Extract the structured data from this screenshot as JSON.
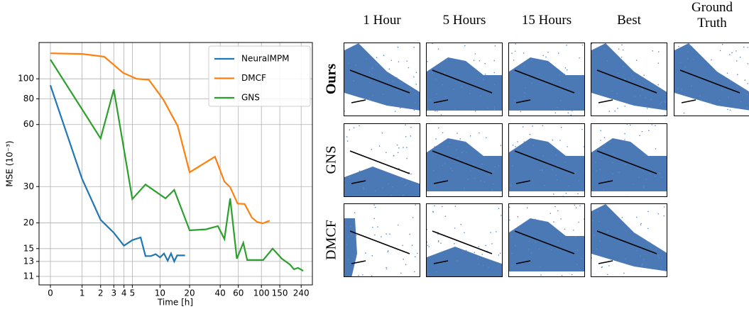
{
  "chart_data": {
    "type": "line",
    "xlabel": "Time [h]",
    "ylabel": "MSE (10⁻³)",
    "xscale": "log1p",
    "yscale": "log",
    "grid": true,
    "legend": "upper right",
    "xlim": [
      -0.22,
      307
    ],
    "ylim": [
      10,
      150
    ],
    "xticks": [
      0,
      1,
      2,
      3,
      4,
      5,
      10,
      20,
      40,
      60,
      100,
      150,
      240
    ],
    "yticks": [
      11,
      13,
      15,
      20,
      30,
      60,
      80,
      100
    ],
    "series": [
      {
        "name": "NeuralMPM",
        "color": "#1f77b4",
        "x": [
          0,
          1,
          2,
          3,
          4,
          5,
          6.2,
          7,
          8,
          9,
          10,
          11,
          12,
          13,
          14,
          15,
          18
        ],
        "values": [
          93,
          32.7,
          20.7,
          17.9,
          15.5,
          16.5,
          17,
          13.8,
          13.8,
          14.1,
          13.6,
          14.2,
          13.1,
          14.2,
          13,
          13.9,
          13.9
        ]
      },
      {
        "name": "DMCF",
        "color": "#ff7f0e",
        "x": [
          0,
          1,
          2.25,
          3.9,
          5.6,
          7.6,
          10.8,
          15.2,
          20,
          35.6,
          44,
          50,
          59,
          69,
          81,
          91,
          103,
          120
        ],
        "values": [
          133,
          132,
          128,
          107,
          100,
          99,
          79.5,
          59,
          35.2,
          41.9,
          31.7,
          29.8,
          24.8,
          24.7,
          21.2,
          20.2,
          19.9,
          20.5
        ]
      },
      {
        "name": "GNS",
        "color": "#2ca02c",
        "x": [
          0,
          2,
          3,
          5,
          7,
          11.4,
          14,
          20,
          29,
          38,
          44,
          50,
          58,
          67,
          73,
          104,
          128,
          157,
          186,
          205,
          224,
          251
        ],
        "values": [
          124,
          51.4,
          88.8,
          26.1,
          30.7,
          26.3,
          28.9,
          18.4,
          18.6,
          19.3,
          16.7,
          26.3,
          13.4,
          16,
          13.2,
          13.2,
          15,
          13.4,
          12.6,
          11.9,
          12.1,
          11.7
        ]
      }
    ]
  },
  "grid_figure": {
    "columns": [
      "1 Hour",
      "5 Hours",
      "15 Hours",
      "Best",
      "Ground Truth"
    ],
    "rows": [
      "Ours",
      "GNS",
      "DMCF"
    ]
  }
}
